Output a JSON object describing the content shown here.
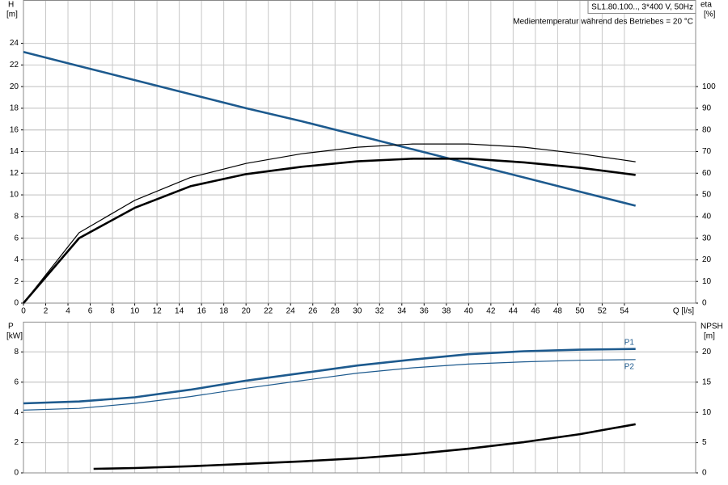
{
  "chart_data": [
    {
      "type": "line",
      "title": "SL1.80.100.., 3*400 V, 50Hz",
      "subtitle": "Medientemperatur während des Betriebes = 20 °C",
      "ylabel": "H",
      "yunit": "[m]",
      "y2label": "eta",
      "y2unit": "[%]",
      "xlabel": "Q [l/s]",
      "xlim": [
        0,
        60.4
      ],
      "xticks": [
        0,
        2,
        4,
        6,
        8,
        10,
        12,
        14,
        16,
        18,
        20,
        22,
        24,
        26,
        28,
        30,
        32,
        34,
        36,
        38,
        40,
        42,
        44,
        46,
        48,
        50,
        52,
        54
      ],
      "ylim": [
        0,
        28
      ],
      "yticks": [
        0,
        2,
        4,
        6,
        8,
        10,
        12,
        14,
        16,
        18,
        20,
        22,
        24
      ],
      "y2lim": [
        0,
        140
      ],
      "y2ticks": [
        0,
        10,
        20,
        30,
        40,
        50,
        60,
        70,
        80,
        90,
        100
      ],
      "grid": true,
      "series": [
        {
          "color": "#1d5a8e",
          "linestyle": "thick",
          "axis": "y",
          "x": [
            0,
            5,
            10,
            15,
            20,
            25,
            30,
            35,
            40,
            45,
            50,
            55
          ],
          "values": [
            23.2,
            21.9,
            20.6,
            19.3,
            18.0,
            16.8,
            15.5,
            14.2,
            12.9,
            11.6,
            10.3,
            9.0
          ]
        },
        {
          "color": "#000000",
          "linestyle": "thick",
          "axis": "y2",
          "x": [
            0,
            5,
            10,
            15,
            20,
            25,
            30,
            35,
            40,
            45,
            50,
            55
          ],
          "values": [
            0,
            30,
            44,
            54,
            59.6,
            63,
            65.5,
            66.7,
            66.7,
            65,
            62.5,
            59.2
          ]
        },
        {
          "color": "#000000",
          "linestyle": "thin",
          "axis": "y2",
          "x": [
            0,
            5,
            10,
            15,
            20,
            25,
            30,
            35,
            40,
            45,
            50,
            55
          ],
          "values": [
            0,
            32.5,
            47.5,
            58,
            64.5,
            69,
            72,
            73.5,
            73.5,
            72,
            69,
            65.3
          ]
        }
      ]
    },
    {
      "type": "line",
      "ylabel": "P",
      "yunit": "[kW]",
      "y2label": "NPSH",
      "y2unit": "[m]",
      "xlim": [
        0,
        60.4
      ],
      "ylim": [
        0,
        10
      ],
      "yticks": [
        0,
        2,
        4,
        6,
        8
      ],
      "y2lim": [
        0,
        25
      ],
      "y2ticks": [
        0,
        5,
        10,
        15,
        20
      ],
      "grid": true,
      "series": [
        {
          "name": "P1",
          "color": "#1d5a8e",
          "linestyle": "thick",
          "axis": "y",
          "x": [
            0,
            5,
            10,
            15,
            20,
            25,
            30,
            35,
            40,
            45,
            50,
            55
          ],
          "values": [
            4.6,
            4.72,
            5.0,
            5.5,
            6.1,
            6.6,
            7.1,
            7.5,
            7.85,
            8.05,
            8.15,
            8.2
          ]
        },
        {
          "name": "P2",
          "color": "#1d5a8e",
          "linestyle": "thin",
          "axis": "y",
          "x": [
            0,
            5,
            10,
            15,
            20,
            25,
            30,
            35,
            40,
            45,
            50,
            55
          ],
          "values": [
            4.15,
            4.27,
            4.6,
            5.05,
            5.6,
            6.1,
            6.6,
            6.95,
            7.2,
            7.35,
            7.45,
            7.5
          ]
        },
        {
          "color": "#000000",
          "linestyle": "thick",
          "axis": "y2",
          "x": [
            6.3,
            10,
            15,
            20,
            25,
            30,
            35,
            40,
            45,
            50,
            55
          ],
          "values": [
            0.67,
            0.8,
            1.1,
            1.5,
            1.9,
            2.4,
            3.1,
            4.0,
            5.1,
            6.4,
            8.05
          ]
        }
      ]
    }
  ]
}
